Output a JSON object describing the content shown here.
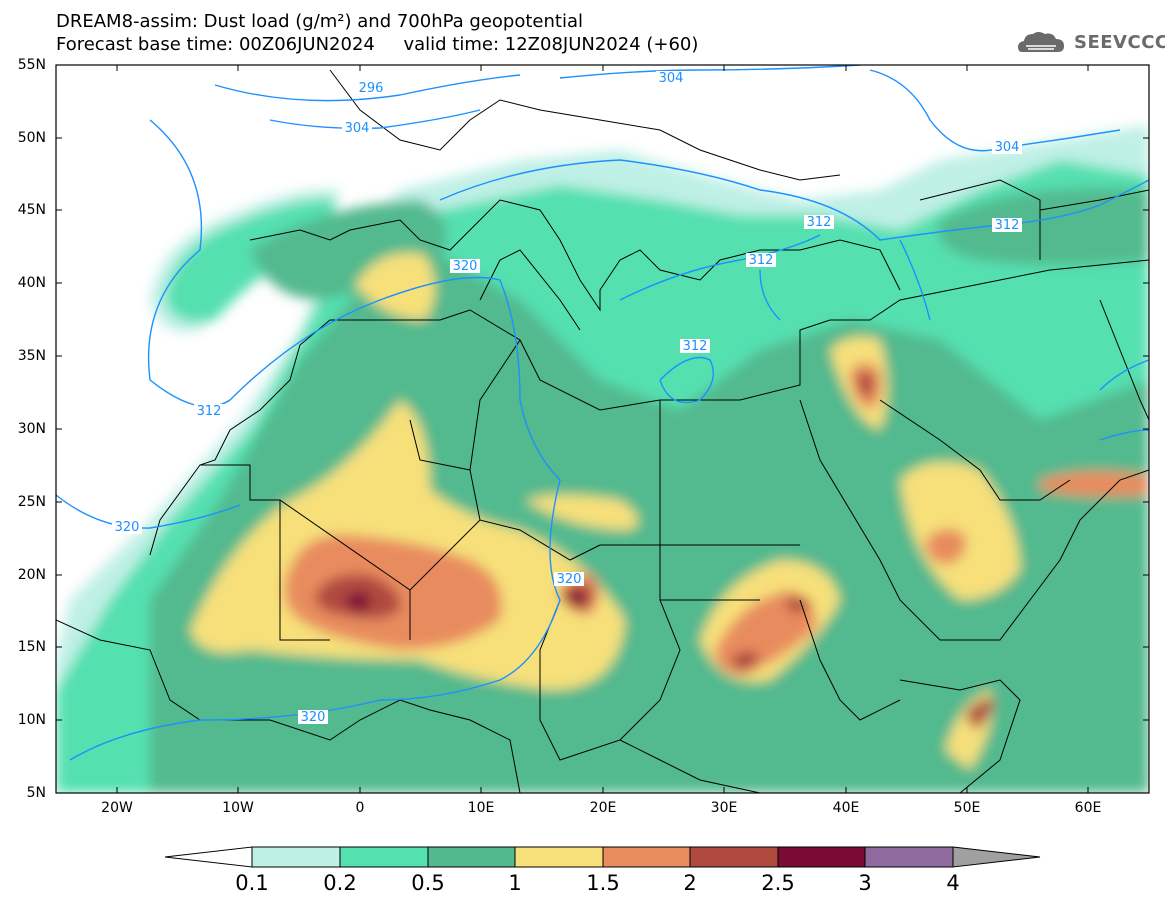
{
  "title": {
    "line1": "DREAM8-assim: Dust load (g/m²) and 700hPa geopotential",
    "line2": "Forecast base time: 00Z06JUN2024     valid time: 12Z08JUN2024 (+60)"
  },
  "logo": {
    "text": "SEEVCCC",
    "icon": "cloud-logo-icon"
  },
  "map": {
    "lon_range": [
      -25,
      65
    ],
    "lat_range": [
      5,
      55
    ],
    "lat_ticks": [
      "55N",
      "50N",
      "45N",
      "40N",
      "35N",
      "30N",
      "25N",
      "20N",
      "15N",
      "10N",
      "5N"
    ],
    "lon_ticks": [
      "20W",
      "10W",
      "0",
      "10E",
      "20E",
      "30E",
      "40E",
      "50E",
      "60E"
    ],
    "contour_labels": [
      "296",
      "304",
      "304",
      "304",
      "312",
      "312",
      "312",
      "312",
      "312",
      "320",
      "320",
      "320",
      "320"
    ],
    "colors": {
      "ocean": "#ffffff",
      "contour": "#1e90ff",
      "borders": "#000000"
    }
  },
  "colorbar": {
    "labels": [
      "0.1",
      "0.2",
      "0.5",
      "1",
      "1.5",
      "2",
      "2.5",
      "3",
      "4"
    ],
    "colors": [
      "#bff0e6",
      "#55e0b0",
      "#52b98e",
      "#f7e07a",
      "#e88c5e",
      "#b04a3f",
      "#7a0b35",
      "#8e6a9e"
    ],
    "under_color": "#ffffff",
    "over_color": "#a0a0a0"
  }
}
